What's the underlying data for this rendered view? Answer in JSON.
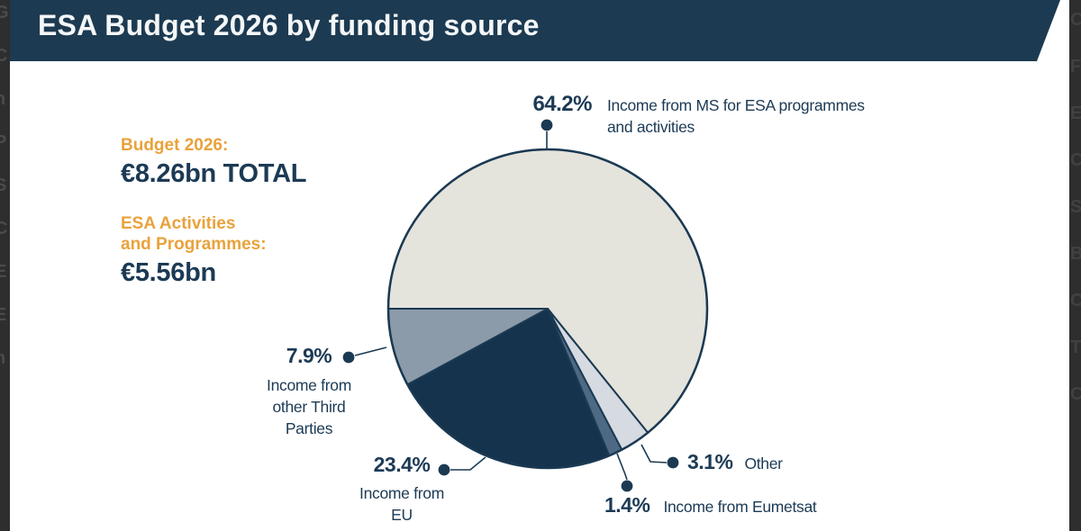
{
  "header": {
    "title": "ESA Budget 2026 by funding source",
    "bg_color": "#1c3a51",
    "text_color": "#f4f6f7"
  },
  "summary": {
    "budget_label": "Budget 2026:",
    "budget_value": "€8.26bn TOTAL",
    "activities_label_line1": "ESA Activities",
    "activities_label_line2": "and Programmes:",
    "activities_value": "€5.56bn",
    "accent_color": "#e9a23b",
    "value_color": "#1c3a55"
  },
  "chart_data": {
    "type": "pie",
    "title": "ESA Budget 2026 by funding source",
    "total": "€8.26bn",
    "direction": "clockwise",
    "start_angle_deg": -90,
    "stroke_color": "#1b3952",
    "slices": [
      {
        "label": "Income from MS for ESA programmes and activities",
        "value": 64.2,
        "color": "#e4e3dc"
      },
      {
        "label": "Other",
        "value": 3.1,
        "color": "#d6dae1"
      },
      {
        "label": "Income from Eumetsat",
        "value": 1.4,
        "color": "#4d6983"
      },
      {
        "label": "Income from EU",
        "value": 23.4,
        "color": "#16334d"
      },
      {
        "label": "Income from other Third Parties",
        "value": 7.9,
        "color": "#8b9baa"
      }
    ]
  },
  "callouts": {
    "ms": {
      "pct": "64.2%",
      "line1": "Income from MS for ESA programmes",
      "line2": "and activities"
    },
    "third": {
      "pct": "7.9%",
      "line1": "Income from",
      "line2": "other Third",
      "line3": "Parties"
    },
    "eu": {
      "pct": "23.4%",
      "line1": "Income from",
      "line2": "EU"
    },
    "other": {
      "pct": "3.1%",
      "label": "Other"
    },
    "eumetsat": {
      "pct": "1.4%",
      "label": "Income from Eumetsat"
    }
  },
  "edge_letters": {
    "left": [
      "G",
      "C",
      "n",
      "P",
      "S",
      "C",
      "E",
      "E",
      "n"
    ],
    "right": [
      "C",
      "F",
      "E",
      "C",
      "S",
      "B",
      "C",
      "T",
      "C"
    ]
  }
}
